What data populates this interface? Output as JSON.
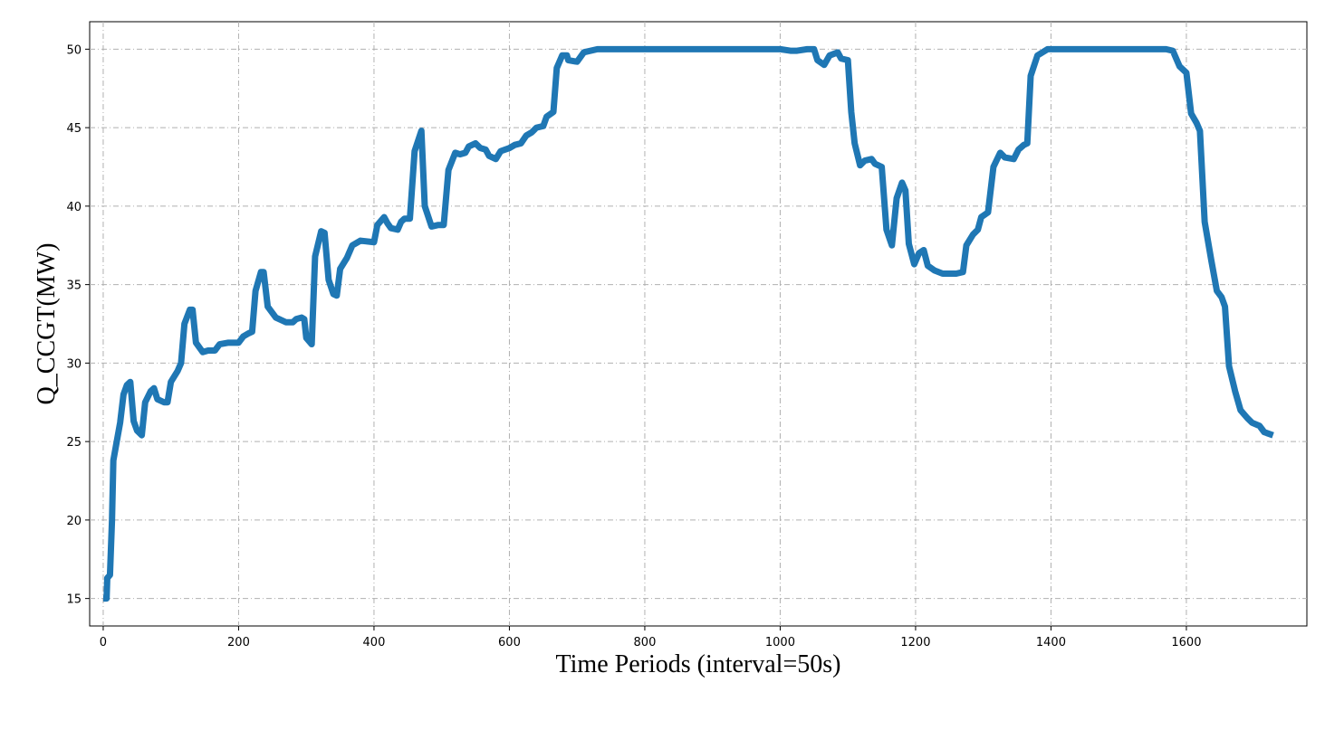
{
  "chart_data": {
    "type": "line",
    "x_label": "Time Periods (interval=50s)",
    "y_label": "Q_CCGT(MW)",
    "xlim": [
      -20,
      1778
    ],
    "ylim": [
      13.25,
      51.75
    ],
    "xticks": [
      0,
      200,
      400,
      600,
      800,
      1000,
      1200,
      1400,
      1600
    ],
    "yticks": [
      15,
      20,
      25,
      30,
      35,
      40,
      45,
      50
    ],
    "grid": true,
    "series": [
      {
        "name": "Q_CCGT",
        "color": "#1f77b4",
        "x": [
          0,
          5,
          6,
          10,
          13,
          15,
          20,
          25,
          30,
          35,
          40,
          45,
          50,
          57,
          62,
          70,
          75,
          80,
          90,
          95,
          100,
          110,
          115,
          120,
          128,
          132,
          137,
          147,
          155,
          165,
          172,
          185,
          200,
          207,
          215,
          220,
          225,
          233,
          237,
          243,
          255,
          270,
          280,
          285,
          293,
          297,
          300,
          308,
          313,
          322,
          327,
          333,
          340,
          345,
          350,
          360,
          368,
          380,
          400,
          405,
          415,
          420,
          425,
          435,
          440,
          445,
          453,
          460,
          470,
          475,
          485,
          495,
          503,
          510,
          520,
          527,
          535,
          540,
          550,
          557,
          565,
          570,
          580,
          587,
          600,
          608,
          617,
          625,
          633,
          640,
          650,
          655,
          665,
          670,
          678,
          685,
          687,
          700,
          710,
          730,
          1000,
          1015,
          1025,
          1040,
          1050,
          1055,
          1065,
          1073,
          1085,
          1090,
          1100,
          1105,
          1110,
          1118,
          1125,
          1135,
          1140,
          1150,
          1157,
          1165,
          1172,
          1180,
          1185,
          1190,
          1198,
          1205,
          1212,
          1218,
          1228,
          1240,
          1260,
          1270,
          1275,
          1285,
          1292,
          1297,
          1307,
          1315,
          1325,
          1332,
          1345,
          1352,
          1360,
          1365,
          1370,
          1380,
          1395,
          1570,
          1580,
          1590,
          1600,
          1607,
          1615,
          1620,
          1627,
          1637,
          1645,
          1652,
          1657,
          1663,
          1672,
          1680,
          1690,
          1697,
          1708,
          1715,
          1728
        ],
        "values": [
          15,
          15,
          16.3,
          16.5,
          20,
          23.8,
          25,
          26.2,
          28,
          28.6,
          28.8,
          26.3,
          25.7,
          25.4,
          27.5,
          28.2,
          28.4,
          27.7,
          27.5,
          27.5,
          28.8,
          29.5,
          30,
          32.5,
          33.4,
          33.4,
          31.3,
          30.7,
          30.8,
          30.8,
          31.2,
          31.3,
          31.3,
          31.7,
          31.9,
          32,
          34.6,
          35.8,
          35.8,
          33.6,
          32.9,
          32.6,
          32.6,
          32.8,
          32.9,
          32.8,
          31.6,
          31.2,
          36.8,
          38.4,
          38.3,
          35.3,
          34.4,
          34.3,
          36,
          36.7,
          37.5,
          37.8,
          37.7,
          38.8,
          39.3,
          38.9,
          38.6,
          38.5,
          39,
          39.2,
          39.2,
          43.5,
          44.8,
          40,
          38.7,
          38.8,
          38.8,
          42.3,
          43.4,
          43.3,
          43.4,
          43.8,
          44,
          43.7,
          43.6,
          43.2,
          43,
          43.5,
          43.7,
          43.9,
          44,
          44.5,
          44.7,
          45,
          45.1,
          45.7,
          46,
          48.8,
          49.6,
          49.6,
          49.3,
          49.2,
          49.8,
          50,
          50,
          49.9,
          49.9,
          50,
          50,
          49.3,
          49,
          49.6,
          49.8,
          49.4,
          49.3,
          46,
          44,
          42.6,
          42.9,
          43,
          42.7,
          42.5,
          38.5,
          37.5,
          40.5,
          41.5,
          41,
          37.6,
          36.3,
          37,
          37.2,
          36.2,
          35.9,
          35.7,
          35.7,
          35.8,
          37.5,
          38.2,
          38.5,
          39.3,
          39.6,
          42.5,
          43.4,
          43.1,
          43,
          43.6,
          43.9,
          44,
          48.3,
          49.6,
          50,
          50,
          49.9,
          48.9,
          48.5,
          45.9,
          45.3,
          44.8,
          39,
          36.5,
          34.6,
          34.2,
          33.6,
          29.8,
          28.2,
          27,
          26.5,
          26.2,
          26,
          25.6,
          25.4
        ]
      }
    ]
  }
}
